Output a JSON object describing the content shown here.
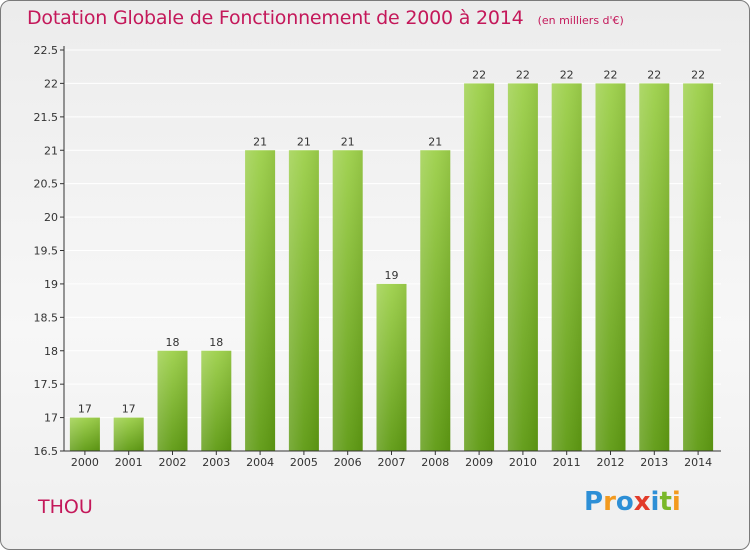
{
  "header": {
    "title": "Dotation Globale de Fonctionnement de 2000 à 2014",
    "unit": "(en milliers d'€)"
  },
  "footer": {
    "commune": "THOU",
    "brand": {
      "text": "Proxiti",
      "letters": [
        {
          "char": "P",
          "color": "#2d8fd6"
        },
        {
          "char": "r",
          "color": "#f39a1e"
        },
        {
          "char": "o",
          "color": "#2d8fd6"
        },
        {
          "char": "x",
          "color": "#e23b2a"
        },
        {
          "char": "i",
          "color": "#2d8fd6"
        },
        {
          "char": "t",
          "color": "#7ab829"
        },
        {
          "char": "i",
          "color": "#f39a1e"
        }
      ]
    }
  },
  "colors": {
    "bar_light": "#9dd04a",
    "bar_dark": "#5e9a12",
    "title": "#c4185a",
    "grid": "#ffffff",
    "axis": "#333333"
  },
  "chart_data": {
    "type": "bar",
    "title": "Dotation Globale de Fonctionnement de 2000 à 2014",
    "subtitle": "(en milliers d'€)",
    "categories": [
      "2000",
      "2001",
      "2002",
      "2003",
      "2004",
      "2005",
      "2006",
      "2007",
      "2008",
      "2009",
      "2010",
      "2011",
      "2012",
      "2013",
      "2014"
    ],
    "values": [
      17,
      17,
      18,
      18,
      21,
      21,
      21,
      19,
      21,
      22,
      22,
      22,
      22,
      22,
      22
    ],
    "data_labels": [
      "17",
      "17",
      "18",
      "18",
      "21",
      "21",
      "21",
      "19",
      "21",
      "22",
      "22",
      "22",
      "22",
      "22",
      "22"
    ],
    "ylim": [
      16.5,
      22.5
    ],
    "yticks": [
      "16.5",
      "17",
      "17.5",
      "18",
      "18.5",
      "19",
      "19.5",
      "20",
      "20.5",
      "21",
      "21.5",
      "22",
      "22.5"
    ],
    "xlabel": "",
    "ylabel": "",
    "grid": true,
    "legend": "none"
  }
}
